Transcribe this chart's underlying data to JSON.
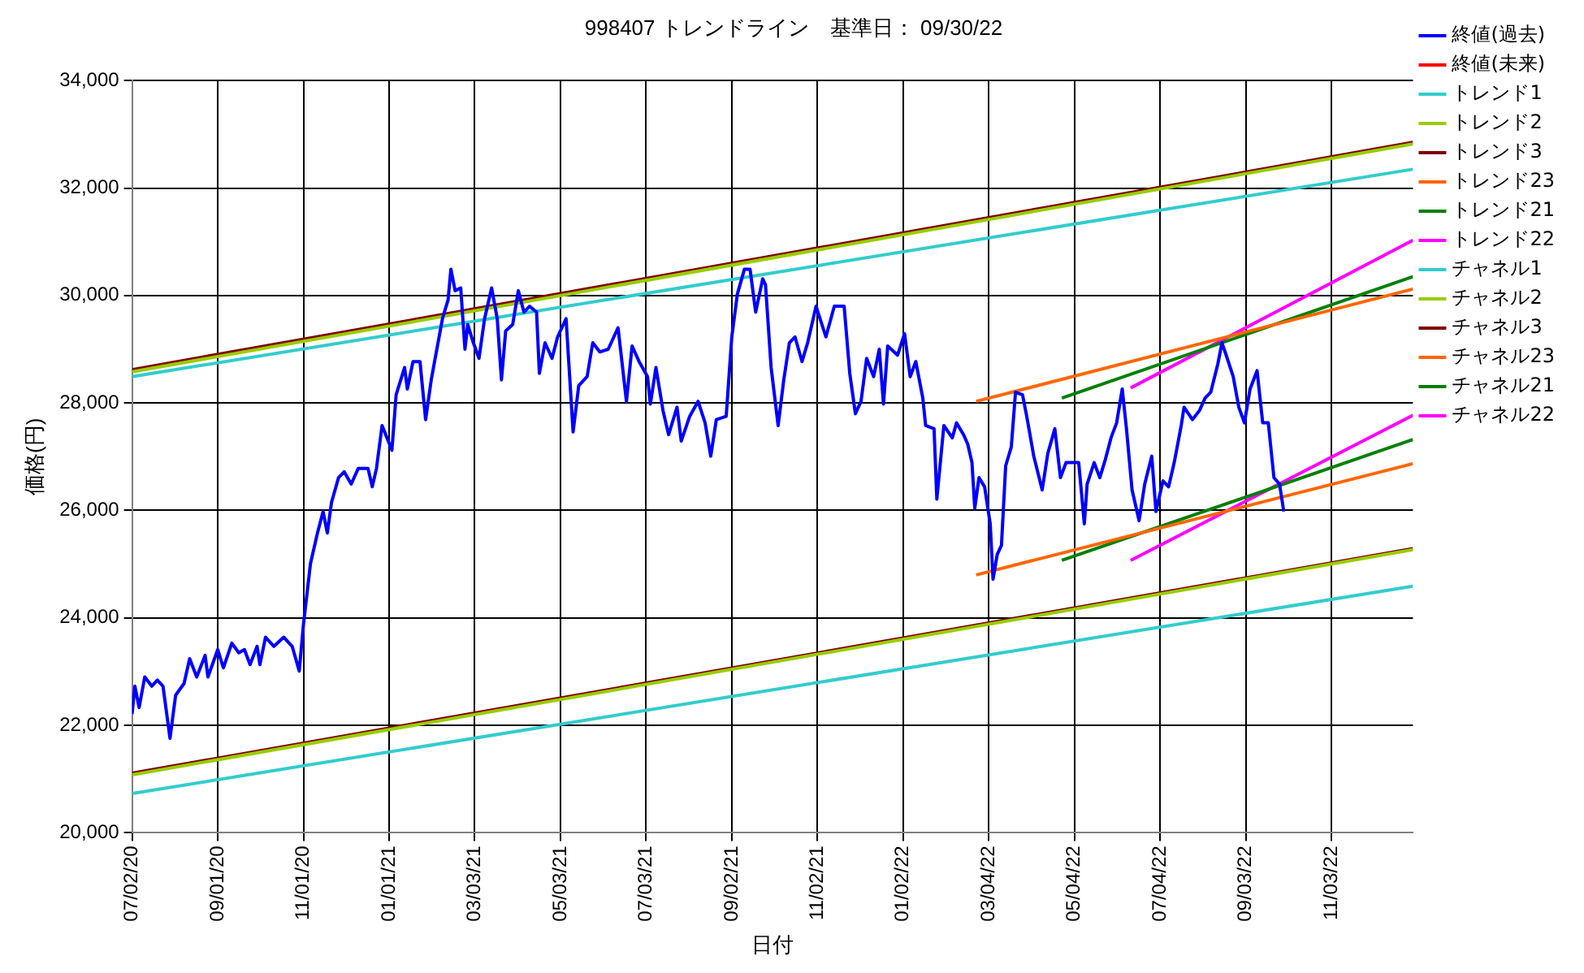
{
  "chart_data": {
    "type": "line",
    "title": "998407 トレンドライン　基準日： 09/30/22",
    "xlabel": "日付",
    "ylabel": "価格(円)",
    "xlim": [
      "2020-07-02",
      "2022-12-31"
    ],
    "xticks": [
      {
        "value": "2020-07-02",
        "label": "07/02/20"
      },
      {
        "value": "2020-09-01",
        "label": "09/01/20"
      },
      {
        "value": "2020-11-01",
        "label": "11/01/20"
      },
      {
        "value": "2021-01-01",
        "label": "01/01/21"
      },
      {
        "value": "2021-03-03",
        "label": "03/03/21"
      },
      {
        "value": "2021-05-03",
        "label": "05/03/21"
      },
      {
        "value": "2021-07-03",
        "label": "07/03/21"
      },
      {
        "value": "2021-09-02",
        "label": "09/02/21"
      },
      {
        "value": "2021-11-02",
        "label": "11/02/21"
      },
      {
        "value": "2022-01-02",
        "label": "01/02/22"
      },
      {
        "value": "2022-03-04",
        "label": "03/04/22"
      },
      {
        "value": "2022-05-04",
        "label": "05/04/22"
      },
      {
        "value": "2022-07-04",
        "label": "07/04/22"
      },
      {
        "value": "2022-09-03",
        "label": "09/03/22"
      },
      {
        "value": "2022-11-03",
        "label": "11/03/22"
      }
    ],
    "ylim": [
      20000,
      34000
    ],
    "yticks": [
      {
        "value": 20000,
        "label": "20,000"
      },
      {
        "value": 22000,
        "label": "22,000"
      },
      {
        "value": 24000,
        "label": "24,000"
      },
      {
        "value": 26000,
        "label": "26,000"
      },
      {
        "value": 28000,
        "label": "28,000"
      },
      {
        "value": 30000,
        "label": "30,000"
      },
      {
        "value": 32000,
        "label": "32,000"
      },
      {
        "value": 34000,
        "label": "34,000"
      }
    ],
    "grid": true,
    "legend": "right",
    "marker": "none",
    "line_style": "solid",
    "series": [
      {
        "name": "終値(過去)",
        "color": "#0000ff",
        "x": [
          "2020-07-02",
          "2020-07-04",
          "2020-07-07",
          "2020-07-11",
          "2020-07-16",
          "2020-07-20",
          "2020-07-24",
          "2020-07-29",
          "2020-08-02",
          "2020-08-08",
          "2020-08-12",
          "2020-08-17",
          "2020-08-23",
          "2020-08-25",
          "2020-09-01",
          "2020-09-05",
          "2020-09-11",
          "2020-09-16",
          "2020-09-20",
          "2020-09-24",
          "2020-09-29",
          "2020-10-01",
          "2020-10-05",
          "2020-10-11",
          "2020-10-18",
          "2020-10-24",
          "2020-10-29",
          "2020-11-01",
          "2020-11-06",
          "2020-11-11",
          "2020-11-15",
          "2020-11-18",
          "2020-11-21",
          "2020-11-26",
          "2020-11-30",
          "2020-12-05",
          "2020-12-10",
          "2020-12-17",
          "2020-12-20",
          "2020-12-23",
          "2020-12-27",
          "2021-01-03",
          "2021-01-06",
          "2021-01-12",
          "2021-01-14",
          "2021-01-18",
          "2021-01-23",
          "2021-01-27",
          "2021-01-31",
          "2021-02-04",
          "2021-02-08",
          "2021-02-12",
          "2021-02-14",
          "2021-02-17",
          "2021-02-21",
          "2021-02-24",
          "2021-02-26",
          "2021-03-02",
          "2021-03-06",
          "2021-03-10",
          "2021-03-15",
          "2021-03-19",
          "2021-03-22",
          "2021-03-25",
          "2021-03-30",
          "2021-04-03",
          "2021-04-07",
          "2021-04-11",
          "2021-04-16",
          "2021-04-18",
          "2021-04-22",
          "2021-04-27",
          "2021-05-01",
          "2021-05-07",
          "2021-05-12",
          "2021-05-16",
          "2021-05-22",
          "2021-05-26",
          "2021-05-31",
          "2021-06-06",
          "2021-06-13",
          "2021-06-19",
          "2021-06-23",
          "2021-06-28",
          "2021-07-04",
          "2021-07-06",
          "2021-07-10",
          "2021-07-15",
          "2021-07-19",
          "2021-07-25",
          "2021-07-28",
          "2021-08-03",
          "2021-08-09",
          "2021-08-14",
          "2021-08-18",
          "2021-08-22",
          "2021-08-29",
          "2021-09-02",
          "2021-09-06",
          "2021-09-11",
          "2021-09-15",
          "2021-09-19",
          "2021-09-24",
          "2021-09-26",
          "2021-09-30",
          "2021-10-05",
          "2021-10-09",
          "2021-10-13",
          "2021-10-17",
          "2021-10-22",
          "2021-10-26",
          "2021-11-01",
          "2021-11-08",
          "2021-11-14",
          "2021-11-21",
          "2021-11-25",
          "2021-11-29",
          "2021-12-03",
          "2021-12-07",
          "2021-12-12",
          "2021-12-16",
          "2021-12-19",
          "2021-12-22",
          "2021-12-29",
          "2022-01-03",
          "2022-01-07",
          "2022-01-11",
          "2022-01-16",
          "2022-01-18",
          "2022-01-24",
          "2022-01-26",
          "2022-01-31",
          "2022-02-06",
          "2022-02-09",
          "2022-02-14",
          "2022-02-17",
          "2022-02-20",
          "2022-02-22",
          "2022-02-25",
          "2022-03-01",
          "2022-03-05",
          "2022-03-07",
          "2022-03-10",
          "2022-03-13",
          "2022-03-16",
          "2022-03-20",
          "2022-03-23",
          "2022-03-28",
          "2022-03-31",
          "2022-04-05",
          "2022-04-11",
          "2022-04-15",
          "2022-04-20",
          "2022-04-24",
          "2022-04-28",
          "2022-05-02",
          "2022-05-07",
          "2022-05-11",
          "2022-05-13",
          "2022-05-18",
          "2022-05-22",
          "2022-05-26",
          "2022-05-30",
          "2022-06-03",
          "2022-06-07",
          "2022-06-10",
          "2022-06-14",
          "2022-06-19",
          "2022-06-23",
          "2022-06-28",
          "2022-07-01",
          "2022-07-06",
          "2022-07-10",
          "2022-07-14",
          "2022-07-19",
          "2022-07-21",
          "2022-07-27",
          "2022-08-01",
          "2022-08-05",
          "2022-08-09",
          "2022-08-14",
          "2022-08-17",
          "2022-08-20",
          "2022-08-25",
          "2022-08-29",
          "2022-09-02",
          "2022-09-06",
          "2022-09-11",
          "2022-09-15",
          "2022-09-19",
          "2022-09-23",
          "2022-09-27",
          "2022-09-30"
        ],
        "values": [
          22210,
          22730,
          22330,
          22900,
          22730,
          22840,
          22730,
          21760,
          22560,
          22780,
          23240,
          22900,
          23300,
          22900,
          23410,
          23070,
          23530,
          23350,
          23410,
          23130,
          23470,
          23130,
          23640,
          23470,
          23640,
          23470,
          23010,
          23870,
          25010,
          25580,
          25980,
          25580,
          26150,
          26610,
          26720,
          26490,
          26780,
          26780,
          26440,
          26780,
          27580,
          27120,
          28150,
          28660,
          28260,
          28770,
          28770,
          27690,
          28430,
          29000,
          29570,
          29920,
          30490,
          30090,
          30140,
          29000,
          29460,
          29120,
          28830,
          29570,
          30140,
          29570,
          28430,
          29340,
          29460,
          30090,
          29690,
          29800,
          29690,
          28550,
          29120,
          28830,
          29230,
          29570,
          27460,
          28320,
          28490,
          29120,
          28950,
          29000,
          29400,
          28030,
          29060,
          28770,
          28490,
          27980,
          28660,
          27860,
          27410,
          27920,
          27290,
          27750,
          28030,
          27630,
          27010,
          27690,
          27750,
          29230,
          30030,
          30490,
          30490,
          29690,
          30310,
          30200,
          28660,
          27580,
          28430,
          29120,
          29230,
          28770,
          29120,
          29800,
          29230,
          29800,
          29800,
          28550,
          27800,
          28030,
          28830,
          28490,
          29000,
          27980,
          29060,
          28890,
          29290,
          28490,
          28770,
          28090,
          27580,
          27520,
          26210,
          27580,
          27350,
          27630,
          27410,
          27230,
          26890,
          26040,
          26610,
          26440,
          25750,
          24720,
          25180,
          25350,
          26830,
          27180,
          28200,
          28150,
          27750,
          27010,
          26380,
          27060,
          27520,
          26610,
          26890,
          26890,
          26890,
          25750,
          26490,
          26890,
          26610,
          26950,
          27350,
          27630,
          28260,
          27520,
          26380,
          25810,
          26490,
          27010,
          25980,
          26550,
          26440,
          26890,
          27580,
          27920,
          27690,
          27860,
          28090,
          28200,
          28720,
          29120,
          28890,
          28490,
          27920,
          27630,
          28260,
          28600,
          27630,
          27630,
          26610,
          26490,
          25980
        ]
      },
      {
        "name": "終値(未来)",
        "color": "#ff0000"
      },
      {
        "name": "トレンド1",
        "color": "#33cccc",
        "x": [
          "2020-07-02",
          "2022-12-31"
        ],
        "values": [
          28490,
          32350
        ]
      },
      {
        "name": "トレンド2",
        "color": "#99cc00",
        "x": [
          "2020-07-02",
          "2022-12-31"
        ],
        "values": [
          28580,
          32820
        ]
      },
      {
        "name": "トレンド3",
        "color": "#800000",
        "x": [
          "2020-07-02",
          "2022-12-31"
        ],
        "values": [
          28620,
          32850
        ]
      },
      {
        "name": "トレンド23",
        "color": "#ff6600",
        "x": [
          "2022-02-23",
          "2022-12-31"
        ],
        "values": [
          28030,
          30120
        ]
      },
      {
        "name": "トレンド21",
        "color": "#008000",
        "x": [
          "2022-04-25",
          "2022-12-31"
        ],
        "values": [
          28090,
          30350
        ]
      },
      {
        "name": "トレンド22",
        "color": "#ff00ff",
        "x": [
          "2022-06-13",
          "2022-12-31"
        ],
        "values": [
          28280,
          31030
        ]
      },
      {
        "name": "チャネル1",
        "color": "#33cccc",
        "x": [
          "2020-07-02",
          "2022-12-31"
        ],
        "values": [
          20730,
          24590
        ]
      },
      {
        "name": "チャネル2",
        "color": "#99cc00",
        "x": [
          "2020-07-02",
          "2022-12-31"
        ],
        "values": [
          21080,
          25270
        ]
      },
      {
        "name": "チャネル3",
        "color": "#800000",
        "x": [
          "2020-07-02",
          "2022-12-31"
        ],
        "values": [
          21110,
          25290
        ]
      },
      {
        "name": "チャネル23",
        "color": "#ff6600",
        "x": [
          "2022-02-23",
          "2022-12-31"
        ],
        "values": [
          24800,
          26870
        ]
      },
      {
        "name": "チャネル21",
        "color": "#008000",
        "x": [
          "2022-04-25",
          "2022-12-31"
        ],
        "values": [
          25070,
          27320
        ]
      },
      {
        "name": "チャネル22",
        "color": "#ff00ff",
        "x": [
          "2022-06-13",
          "2022-12-31"
        ],
        "values": [
          25070,
          27770
        ]
      }
    ]
  }
}
